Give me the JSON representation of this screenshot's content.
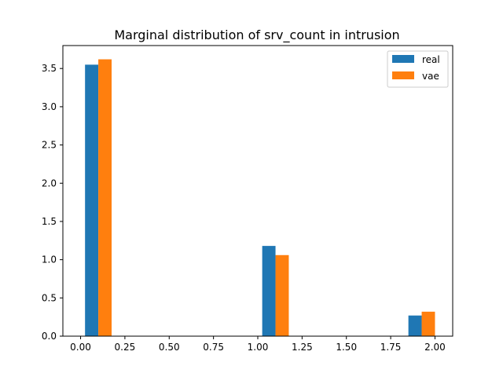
{
  "chart_data": {
    "type": "bar",
    "title": "Marginal distribution of srv_count in intrusion",
    "xlabel": "",
    "ylabel": "",
    "xlim": [
      -0.1,
      2.1
    ],
    "ylim": [
      0,
      3.8
    ],
    "x_ticks": [
      0.0,
      0.25,
      0.5,
      0.75,
      1.0,
      1.25,
      1.5,
      1.75,
      2.0
    ],
    "x_tick_labels": [
      "0.00",
      "0.25",
      "0.50",
      "0.75",
      "1.00",
      "1.25",
      "1.50",
      "1.75",
      "2.00"
    ],
    "y_ticks": [
      0.0,
      0.5,
      1.0,
      1.5,
      2.0,
      2.5,
      3.0,
      3.5
    ],
    "y_tick_labels": [
      "0.0",
      "0.5",
      "1.0",
      "1.5",
      "2.0",
      "2.5",
      "3.0",
      "3.5"
    ],
    "bar_edges": [
      0.025,
      0.1,
      0.175,
      1.025,
      1.1,
      1.175,
      1.85,
      1.925,
      2.0
    ],
    "series": [
      {
        "name": "real",
        "color": "#1f77b4",
        "bins": [
          [
            0.025,
            0.1
          ],
          [
            1.025,
            1.1
          ],
          [
            1.85,
            1.925
          ]
        ],
        "values": [
          3.55,
          1.18,
          0.27
        ]
      },
      {
        "name": "vae",
        "color": "#ff7f0e",
        "bins": [
          [
            0.1,
            0.175
          ],
          [
            1.1,
            1.175
          ],
          [
            1.925,
            2.0
          ]
        ],
        "values": [
          3.62,
          1.06,
          0.32
        ]
      }
    ],
    "legend_position": "top-right",
    "grid": false
  }
}
